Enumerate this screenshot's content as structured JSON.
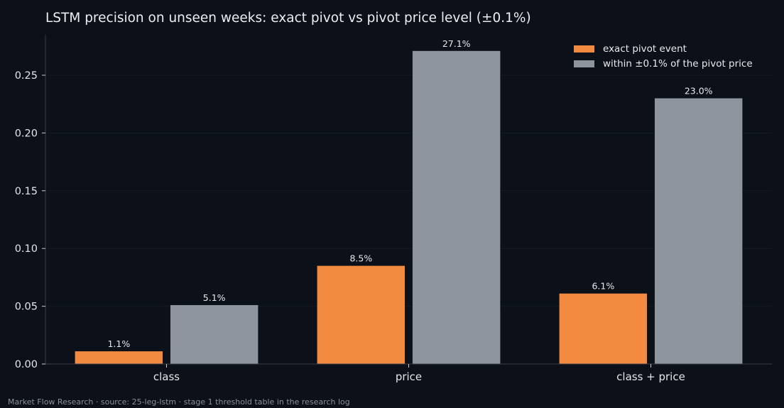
{
  "chart_data": {
    "type": "bar",
    "title": "LSTM precision on unseen weeks: exact pivot vs pivot price level (±0.1%)",
    "categories": [
      "class",
      "price",
      "class + price"
    ],
    "series": [
      {
        "name": "exact pivot event",
        "color": "#f28a40",
        "values": [
          0.011,
          0.085,
          0.061
        ],
        "labels": [
          "1.1%",
          "8.5%",
          "6.1%"
        ]
      },
      {
        "name": "within ±0.1% of the pivot price",
        "color": "#8e959f",
        "values": [
          0.051,
          0.271,
          0.23
        ],
        "labels": [
          "5.1%",
          "27.1%",
          "23.0%"
        ]
      }
    ],
    "yticks": [
      0.0,
      0.05,
      0.1,
      0.15,
      0.2,
      0.25
    ],
    "ytick_labels": [
      "0.00",
      "0.05",
      "0.10",
      "0.15",
      "0.20",
      "0.25"
    ],
    "ylim": [
      0,
      0.285
    ],
    "xlabel": "",
    "ylabel": "",
    "grid": true,
    "legend_position": "top-right"
  },
  "footer": "Market Flow Research · source: 25-leg-lstm · stage 1 threshold table in the research log"
}
